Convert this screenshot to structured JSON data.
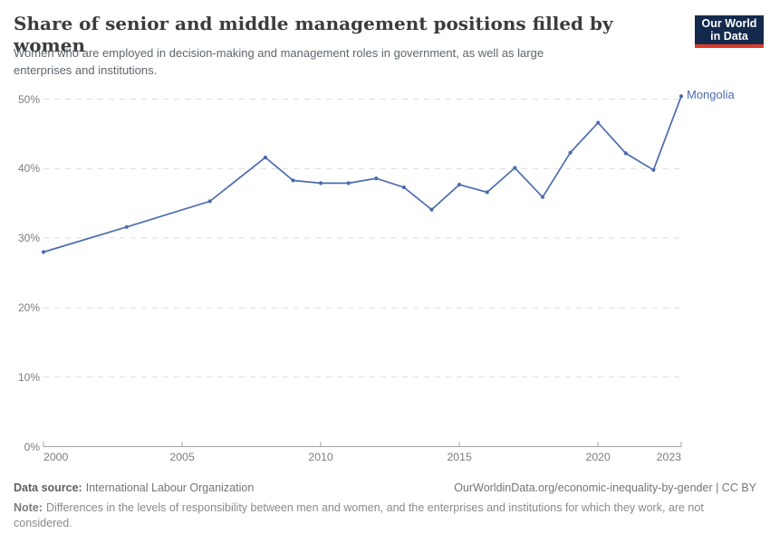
{
  "header": {
    "title": "Share of senior and middle management positions filled by women",
    "subtitle_line1": "Women who are employed in decision-making and management roles in government, as well as large",
    "subtitle_line2": "enterprises and institutions.",
    "logo_line1": "Our World",
    "logo_line2": "in Data",
    "logo_bg_color": "#132a4d",
    "logo_accent_color": "#dd3a2a"
  },
  "chart_data": {
    "type": "line",
    "title": "Share of senior and middle management positions filled by women",
    "xlabel": "",
    "ylabel": "",
    "x": [
      2000,
      2003,
      2006,
      2008,
      2009,
      2010,
      2011,
      2012,
      2013,
      2014,
      2015,
      2016,
      2017,
      2018,
      2019,
      2020,
      2021,
      2022,
      2023
    ],
    "series": [
      {
        "name": "Mongolia",
        "color": "#4c6bad",
        "values": [
          28.0,
          31.6,
          35.3,
          41.6,
          38.3,
          37.9,
          37.9,
          38.6,
          37.3,
          34.1,
          37.7,
          36.6,
          40.1,
          35.9,
          42.3,
          46.6,
          42.2,
          39.8,
          50.4
        ]
      }
    ],
    "xlim": [
      2000,
      2023
    ],
    "ylim": [
      0,
      50
    ],
    "x_ticks": [
      2000,
      2005,
      2010,
      2015,
      2020,
      2023
    ],
    "y_ticks": [
      0,
      10,
      20,
      30,
      40,
      50
    ],
    "y_tick_suffix": "%",
    "grid": "horizontal-dashed",
    "grid_color": "#dedede",
    "axis_color": "#a3a3a3",
    "legend": "line-end-label"
  },
  "footer": {
    "source_label": "Data source:",
    "source_value": "International Labour Organization",
    "attribution": "OurWorldinData.org/economic-inequality-by-gender | CC BY",
    "note_label": "Note:",
    "note_line1": "Differences in the levels of responsibility between men and women, and the enterprises and institutions for which they work, are not",
    "note_line2": "considered."
  }
}
